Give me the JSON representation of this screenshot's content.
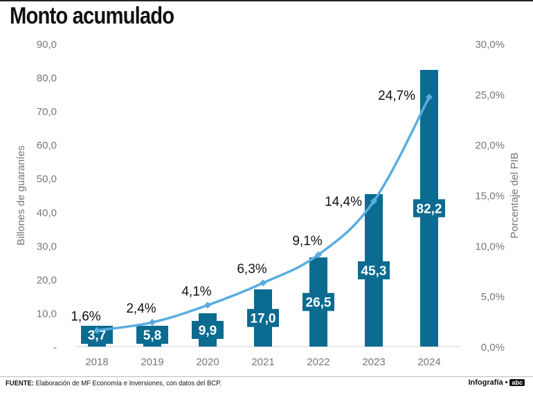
{
  "header": {
    "title": "Monto acumulado"
  },
  "footer": {
    "source_label": "FUENTE:",
    "source_text": "Elaboración de MF Economía e Inversiones, con datos del BCP.",
    "credit": "Infografía •",
    "logo": "abc"
  },
  "colors": {
    "bar": "#0b6b90",
    "line": "#5aace0",
    "axis_text": "#777777",
    "label_text": "#111111"
  },
  "chart_data": {
    "type": "bar+line",
    "title": "Monto acumulado",
    "categories": [
      "2018",
      "2019",
      "2020",
      "2021",
      "2022",
      "2023",
      "2024"
    ],
    "series": [
      {
        "name": "Billones de guaraníes",
        "type": "bar",
        "axis": "left",
        "values": [
          3.7,
          5.8,
          9.9,
          17.0,
          26.5,
          45.3,
          82.2
        ],
        "labels": [
          "3,7",
          "5,8",
          "9,9",
          "17,0",
          "26,5",
          "45,3",
          "82,2"
        ]
      },
      {
        "name": "Porcentaje del PIB",
        "type": "line",
        "axis": "right",
        "values": [
          1.6,
          2.4,
          4.1,
          6.3,
          9.1,
          14.4,
          24.7
        ],
        "labels": [
          "1,6%",
          "2,4%",
          "4,1%",
          "6,3%",
          "9,1%",
          "14,4%",
          "24,7%"
        ]
      }
    ],
    "ylabel_left": "Billones de guaraníes",
    "ylabel_right": "Porcentaje del PIB",
    "ylim_left": [
      0,
      90
    ],
    "ylim_right": [
      0,
      30
    ],
    "yticks_left": [
      "-",
      "10,0",
      "20,0",
      "30,0",
      "40,0",
      "50,0",
      "60,0",
      "70,0",
      "80,0",
      "90,0"
    ],
    "yticks_right": [
      "0,0%",
      "5,0%",
      "10,0%",
      "15,0%",
      "20,0%",
      "25,0%",
      "30,0%"
    ]
  }
}
